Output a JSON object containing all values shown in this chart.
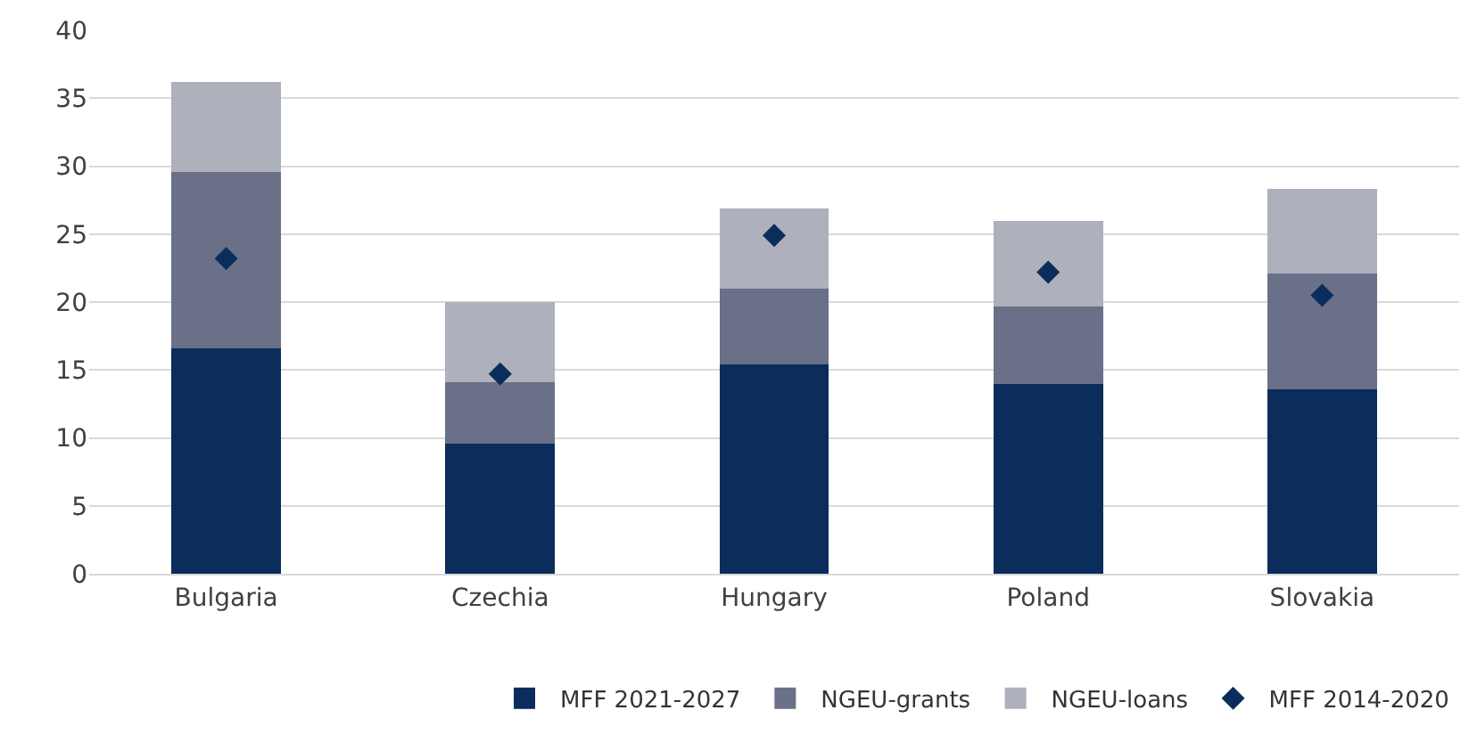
{
  "chart_data": {
    "type": "bar",
    "stacked": true,
    "categories": [
      "Bulgaria",
      "Czechia",
      "Hungary",
      "Poland",
      "Slovakia"
    ],
    "series": [
      {
        "name": "MFF 2021-2027",
        "color": "#0b2d5c",
        "values": [
          16.6,
          9.6,
          15.4,
          14.0,
          13.6
        ]
      },
      {
        "name": "NGEU-grants",
        "color": "#6a7088",
        "values": [
          13.0,
          4.5,
          5.6,
          5.7,
          8.5
        ]
      },
      {
        "name": "NGEU-loans",
        "color": "#aeb0bc",
        "values": [
          6.6,
          5.9,
          5.9,
          6.3,
          6.2
        ]
      },
      {
        "name": "MFF 2014-2020",
        "color": "#0b2d5c",
        "type": "scatter",
        "marker": "diamond",
        "values": [
          23.2,
          14.7,
          24.9,
          22.2,
          20.5
        ]
      }
    ],
    "ylim": [
      0,
      40
    ],
    "yticks": [
      0,
      5,
      10,
      15,
      20,
      25,
      30,
      35,
      40
    ],
    "grid": "y",
    "legend": "bottom"
  }
}
